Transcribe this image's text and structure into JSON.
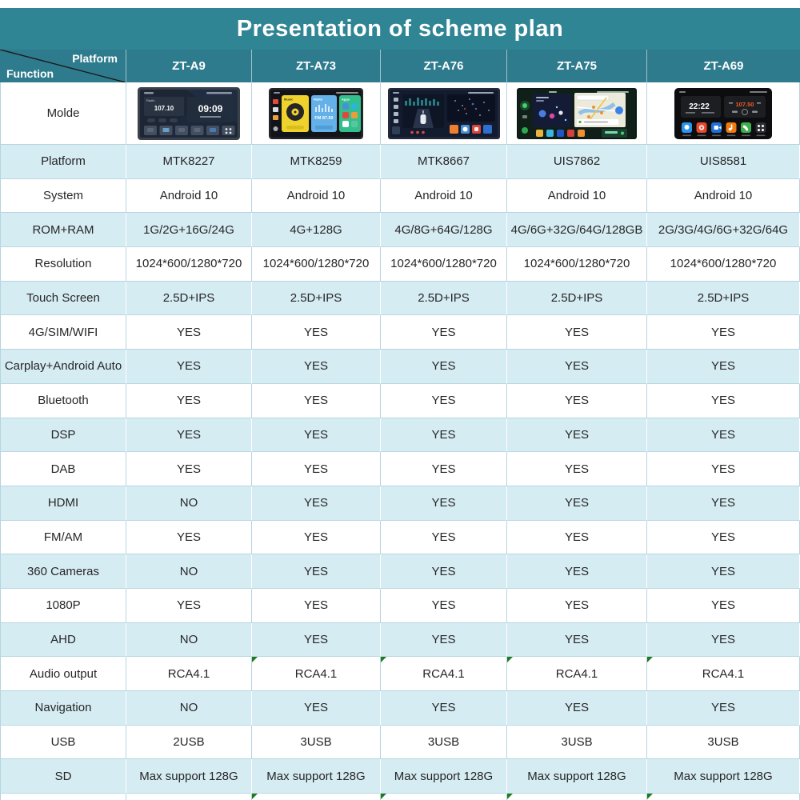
{
  "title": "Presentation of scheme plan",
  "corner": {
    "top_label": "Platform",
    "bottom_label": "Function"
  },
  "columns": [
    "ZT-A9",
    "ZT-A73",
    "ZT-A76",
    "ZT-A75",
    "ZT-A69"
  ],
  "molde_row_label": "Molde",
  "devices": {
    "zta9": {
      "radio_label": "Radio",
      "frequency": "107.10",
      "clock": "09:09"
    },
    "zta73": {
      "music_label": "Music",
      "radio_label": "Radio",
      "fm_text": "FM 87.50",
      "apps_label": "Apps"
    },
    "zta69": {
      "clock": "22:22",
      "frequency": "107.50"
    }
  },
  "rows": [
    {
      "label": "Platform",
      "shaded": true,
      "values": [
        "MTK8227",
        "MTK8259",
        "MTK8667",
        "UIS7862",
        "UIS8581"
      ]
    },
    {
      "label": "System",
      "shaded": false,
      "values": [
        "Android 10",
        "Android 10",
        "Android 10",
        "Android 10",
        "Android 10"
      ]
    },
    {
      "label": "ROM+RAM",
      "shaded": true,
      "values": [
        "1G/2G+16G/24G",
        "4G+128G",
        "4G/8G+64G/128G",
        "4G/6G+32G/64G/128GB",
        "2G/3G/4G/6G+32G/64G"
      ]
    },
    {
      "label": "Resolution",
      "shaded": false,
      "values": [
        "1024*600/1280*720",
        "1024*600/1280*720",
        "1024*600/1280*720",
        "1024*600/1280*720",
        "1024*600/1280*720"
      ]
    },
    {
      "label": "Touch Screen",
      "shaded": true,
      "values": [
        "2.5D+IPS",
        "2.5D+IPS",
        "2.5D+IPS",
        "2.5D+IPS",
        "2.5D+IPS"
      ]
    },
    {
      "label": "4G/SIM/WIFI",
      "shaded": false,
      "values": [
        "YES",
        "YES",
        "YES",
        "YES",
        "YES"
      ]
    },
    {
      "label": "Carplay+Android Auto",
      "shaded": true,
      "values": [
        "YES",
        "YES",
        "YES",
        "YES",
        "YES"
      ]
    },
    {
      "label": "Bluetooth",
      "shaded": false,
      "values": [
        "YES",
        "YES",
        "YES",
        "YES",
        "YES"
      ]
    },
    {
      "label": "DSP",
      "shaded": true,
      "values": [
        "YES",
        "YES",
        "YES",
        "YES",
        "YES"
      ]
    },
    {
      "label": "DAB",
      "shaded": false,
      "values": [
        "YES",
        "YES",
        "YES",
        "YES",
        "YES"
      ]
    },
    {
      "label": "HDMI",
      "shaded": true,
      "values": [
        "NO",
        "YES",
        "YES",
        "YES",
        "YES"
      ]
    },
    {
      "label": "FM/AM",
      "shaded": false,
      "values": [
        "YES",
        "YES",
        "YES",
        "YES",
        "YES"
      ]
    },
    {
      "label": "360 Cameras",
      "shaded": true,
      "values": [
        "NO",
        "YES",
        "YES",
        "YES",
        "YES"
      ]
    },
    {
      "label": "1080P",
      "shaded": false,
      "values": [
        "YES",
        "YES",
        "YES",
        "YES",
        "YES"
      ]
    },
    {
      "label": "AHD",
      "shaded": true,
      "values": [
        "NO",
        "YES",
        "YES",
        "YES",
        "YES"
      ]
    },
    {
      "label": "Audio output",
      "shaded": false,
      "values": [
        "RCA4.1",
        "RCA4.1",
        "RCA4.1",
        "RCA4.1",
        "RCA4.1"
      ],
      "flags": [
        1,
        2,
        3,
        4
      ]
    },
    {
      "label": "Navigation",
      "shaded": true,
      "values": [
        "NO",
        "YES",
        "YES",
        "YES",
        "YES"
      ]
    },
    {
      "label": "USB",
      "shaded": false,
      "values": [
        "2USB",
        "3USB",
        "3USB",
        "3USB",
        "3USB"
      ]
    },
    {
      "label": "SD",
      "shaded": true,
      "values": [
        "Max support 128G",
        "Max support 128G",
        "Max support 128G",
        "Max support 128G",
        "Max support 128G"
      ]
    }
  ],
  "colors": {
    "title_bar_teal": "#308595",
    "header_teal": "#2E7B8D",
    "shaded_row_blue": "#D6ECF3",
    "grid_border": "#B6D4E0",
    "flag_green": "#1E7A1F"
  }
}
